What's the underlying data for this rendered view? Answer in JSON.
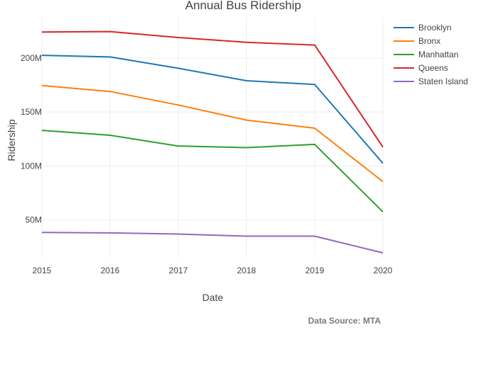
{
  "chart_data": {
    "type": "line",
    "title": "Annual Bus Ridership",
    "xlabel": "Date",
    "ylabel": "Ridership",
    "x": [
      2015,
      2016,
      2017,
      2018,
      2019,
      2020
    ],
    "x_tick_labels": [
      "2015",
      "2016",
      "2017",
      "2018",
      "2019",
      "2020"
    ],
    "y_ticks": [
      50000000,
      100000000,
      150000000,
      200000000
    ],
    "y_tick_labels": [
      "50M",
      "100M",
      "150M",
      "200M"
    ],
    "ylim": [
      15000000,
      238000000
    ],
    "grid": true,
    "legend_position": "top-right",
    "series": [
      {
        "name": "Brooklyn",
        "color": "#1f77b4",
        "values": [
          202500000,
          201000000,
          190500000,
          179000000,
          175500000,
          102500000
        ]
      },
      {
        "name": "Bronx",
        "color": "#ff7f0e",
        "values": [
          174500000,
          169000000,
          156500000,
          142500000,
          135000000,
          85500000
        ]
      },
      {
        "name": "Manhattan",
        "color": "#2ca02c",
        "values": [
          133000000,
          128500000,
          118500000,
          117000000,
          120000000,
          57500000
        ]
      },
      {
        "name": "Queens",
        "color": "#d62728",
        "values": [
          224000000,
          224500000,
          219000000,
          214500000,
          212000000,
          117500000
        ]
      },
      {
        "name": "Staten Island",
        "color": "#9467bd",
        "values": [
          38500000,
          38000000,
          37000000,
          35000000,
          35000000,
          19500000
        ]
      }
    ],
    "annotation": "Data Source: MTA"
  }
}
